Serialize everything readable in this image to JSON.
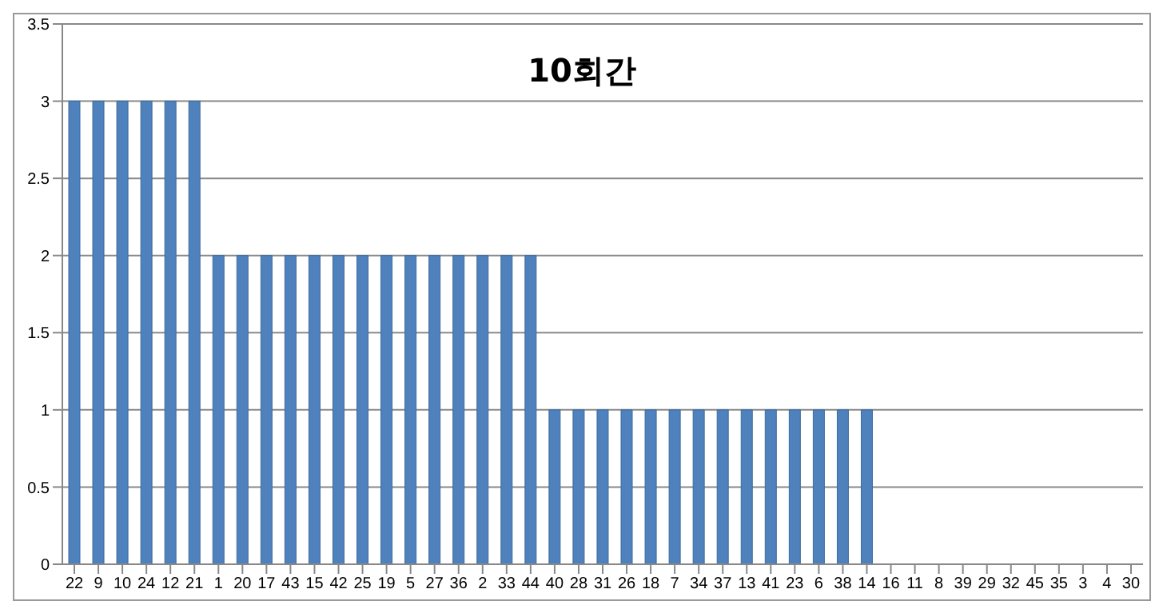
{
  "chart_data": {
    "type": "bar",
    "title": "10회간",
    "categories": [
      "22",
      "9",
      "10",
      "24",
      "12",
      "21",
      "1",
      "20",
      "17",
      "43",
      "15",
      "42",
      "25",
      "19",
      "5",
      "27",
      "36",
      "2",
      "33",
      "44",
      "40",
      "28",
      "31",
      "26",
      "18",
      "7",
      "34",
      "37",
      "13",
      "41",
      "23",
      "6",
      "38",
      "14",
      "16",
      "11",
      "8",
      "39",
      "29",
      "32",
      "45",
      "35",
      "3",
      "4",
      "30"
    ],
    "values": [
      3,
      3,
      3,
      3,
      3,
      3,
      2,
      2,
      2,
      2,
      2,
      2,
      2,
      2,
      2,
      2,
      2,
      2,
      2,
      2,
      1,
      1,
      1,
      1,
      1,
      1,
      1,
      1,
      1,
      1,
      1,
      1,
      1,
      1,
      0,
      0,
      0,
      0,
      0,
      0,
      0,
      0,
      0,
      0,
      0
    ],
    "color": "#4f81bd",
    "ylim": [
      0,
      3.5
    ],
    "yticks": [
      0,
      0.5,
      1,
      1.5,
      2,
      2.5,
      3,
      3.5
    ],
    "grid": "y"
  }
}
